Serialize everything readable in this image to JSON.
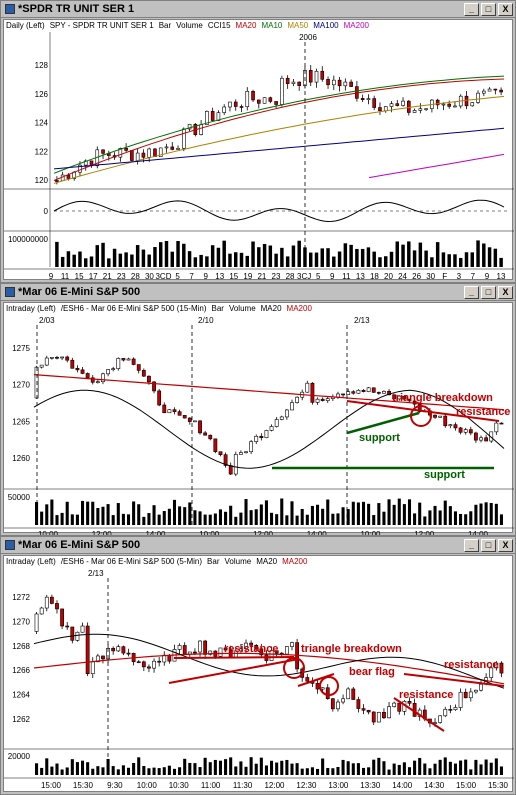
{
  "windows": [
    {
      "title": "*SPDR TR UNIT SER 1",
      "header": [
        "Daily (Left)",
        "SPY - SPDR TR UNIT SER 1",
        "Bar",
        "Volume",
        "CCI15",
        "MA20",
        "MA10",
        "MA50",
        "MA100",
        "MA200"
      ],
      "header_colors": [
        "#000",
        "#000",
        "#000",
        "#000",
        "#000",
        "#c00000",
        "#007000",
        "#b08000",
        "#000080",
        "#c000c0"
      ],
      "marker": "2006",
      "y_ticks": [
        "128",
        "126",
        "124",
        "122",
        "120"
      ],
      "cci_tick": "0",
      "vol_tick": "100000000",
      "x_ticks": [
        "9",
        "11",
        "15",
        "17",
        "21",
        "23",
        "28",
        "30",
        "3CD",
        "5",
        "7",
        "9",
        "13",
        "15",
        "19",
        "21",
        "23",
        "28",
        "3CJ",
        "5",
        "9",
        "11",
        "13",
        "18",
        "20",
        "24",
        "26",
        "30",
        "F",
        "3",
        "7",
        "9",
        "13"
      ]
    },
    {
      "title": "*Mar 06  E-Mini S&P 500",
      "header": [
        "Intraday (Left)",
        "/ESH6 - Mar 06  E-Mini S&P 500 (15-Min)",
        "Bar",
        "Volume",
        "MA20",
        "MA200"
      ],
      "header_colors": [
        "#000",
        "#000",
        "#000",
        "#000",
        "#000",
        "#c00000"
      ],
      "date_labels": [
        "2/03",
        "2/10",
        "2/13"
      ],
      "y_ticks": [
        "1275",
        "1270",
        "1265",
        "1260"
      ],
      "vol_tick": "50000",
      "x_ticks": [
        "10:00",
        "12:00",
        "14:00",
        "10:00",
        "12:00",
        "14:00",
        "10:00",
        "12:00",
        "14:00"
      ],
      "annotations": [
        "triangle breakdown",
        "resistance",
        "support",
        "support"
      ]
    },
    {
      "title": "*Mar 06  E-Mini S&P 500",
      "header": [
        "Intraday (Left)",
        "/ESH6 - Mar 06  E-Mini S&P 500 (5-Min)",
        "Bar",
        "Volume",
        "MA20",
        "MA200"
      ],
      "header_colors": [
        "#000",
        "#000",
        "#000",
        "#000",
        "#000",
        "#c00000"
      ],
      "date_labels": [
        "2/13"
      ],
      "y_ticks": [
        "1272",
        "1270",
        "1268",
        "1266",
        "1264",
        "1262"
      ],
      "vol_tick": "20000",
      "x_ticks": [
        "15:00",
        "15:30",
        "9:30",
        "10:00",
        "10:30",
        "11:00",
        "11:30",
        "12:00",
        "12:30",
        "13:00",
        "13:30",
        "14:00",
        "14:30",
        "15:00",
        "15:30"
      ],
      "annotations": [
        "resistance",
        "triangle breakdown",
        "bear flag",
        "resistance",
        "resistance"
      ]
    }
  ],
  "buttons": {
    "minimize": "_",
    "maximize": "□",
    "close": "X"
  },
  "colors": {
    "up": "#000000",
    "down": "#c00000",
    "ma20": "#c00000",
    "ma10": "#007000",
    "ma50": "#b08000",
    "ma100": "#000080",
    "ma200": "#c000c0",
    "annot": "#c00000",
    "support": "#006000"
  }
}
